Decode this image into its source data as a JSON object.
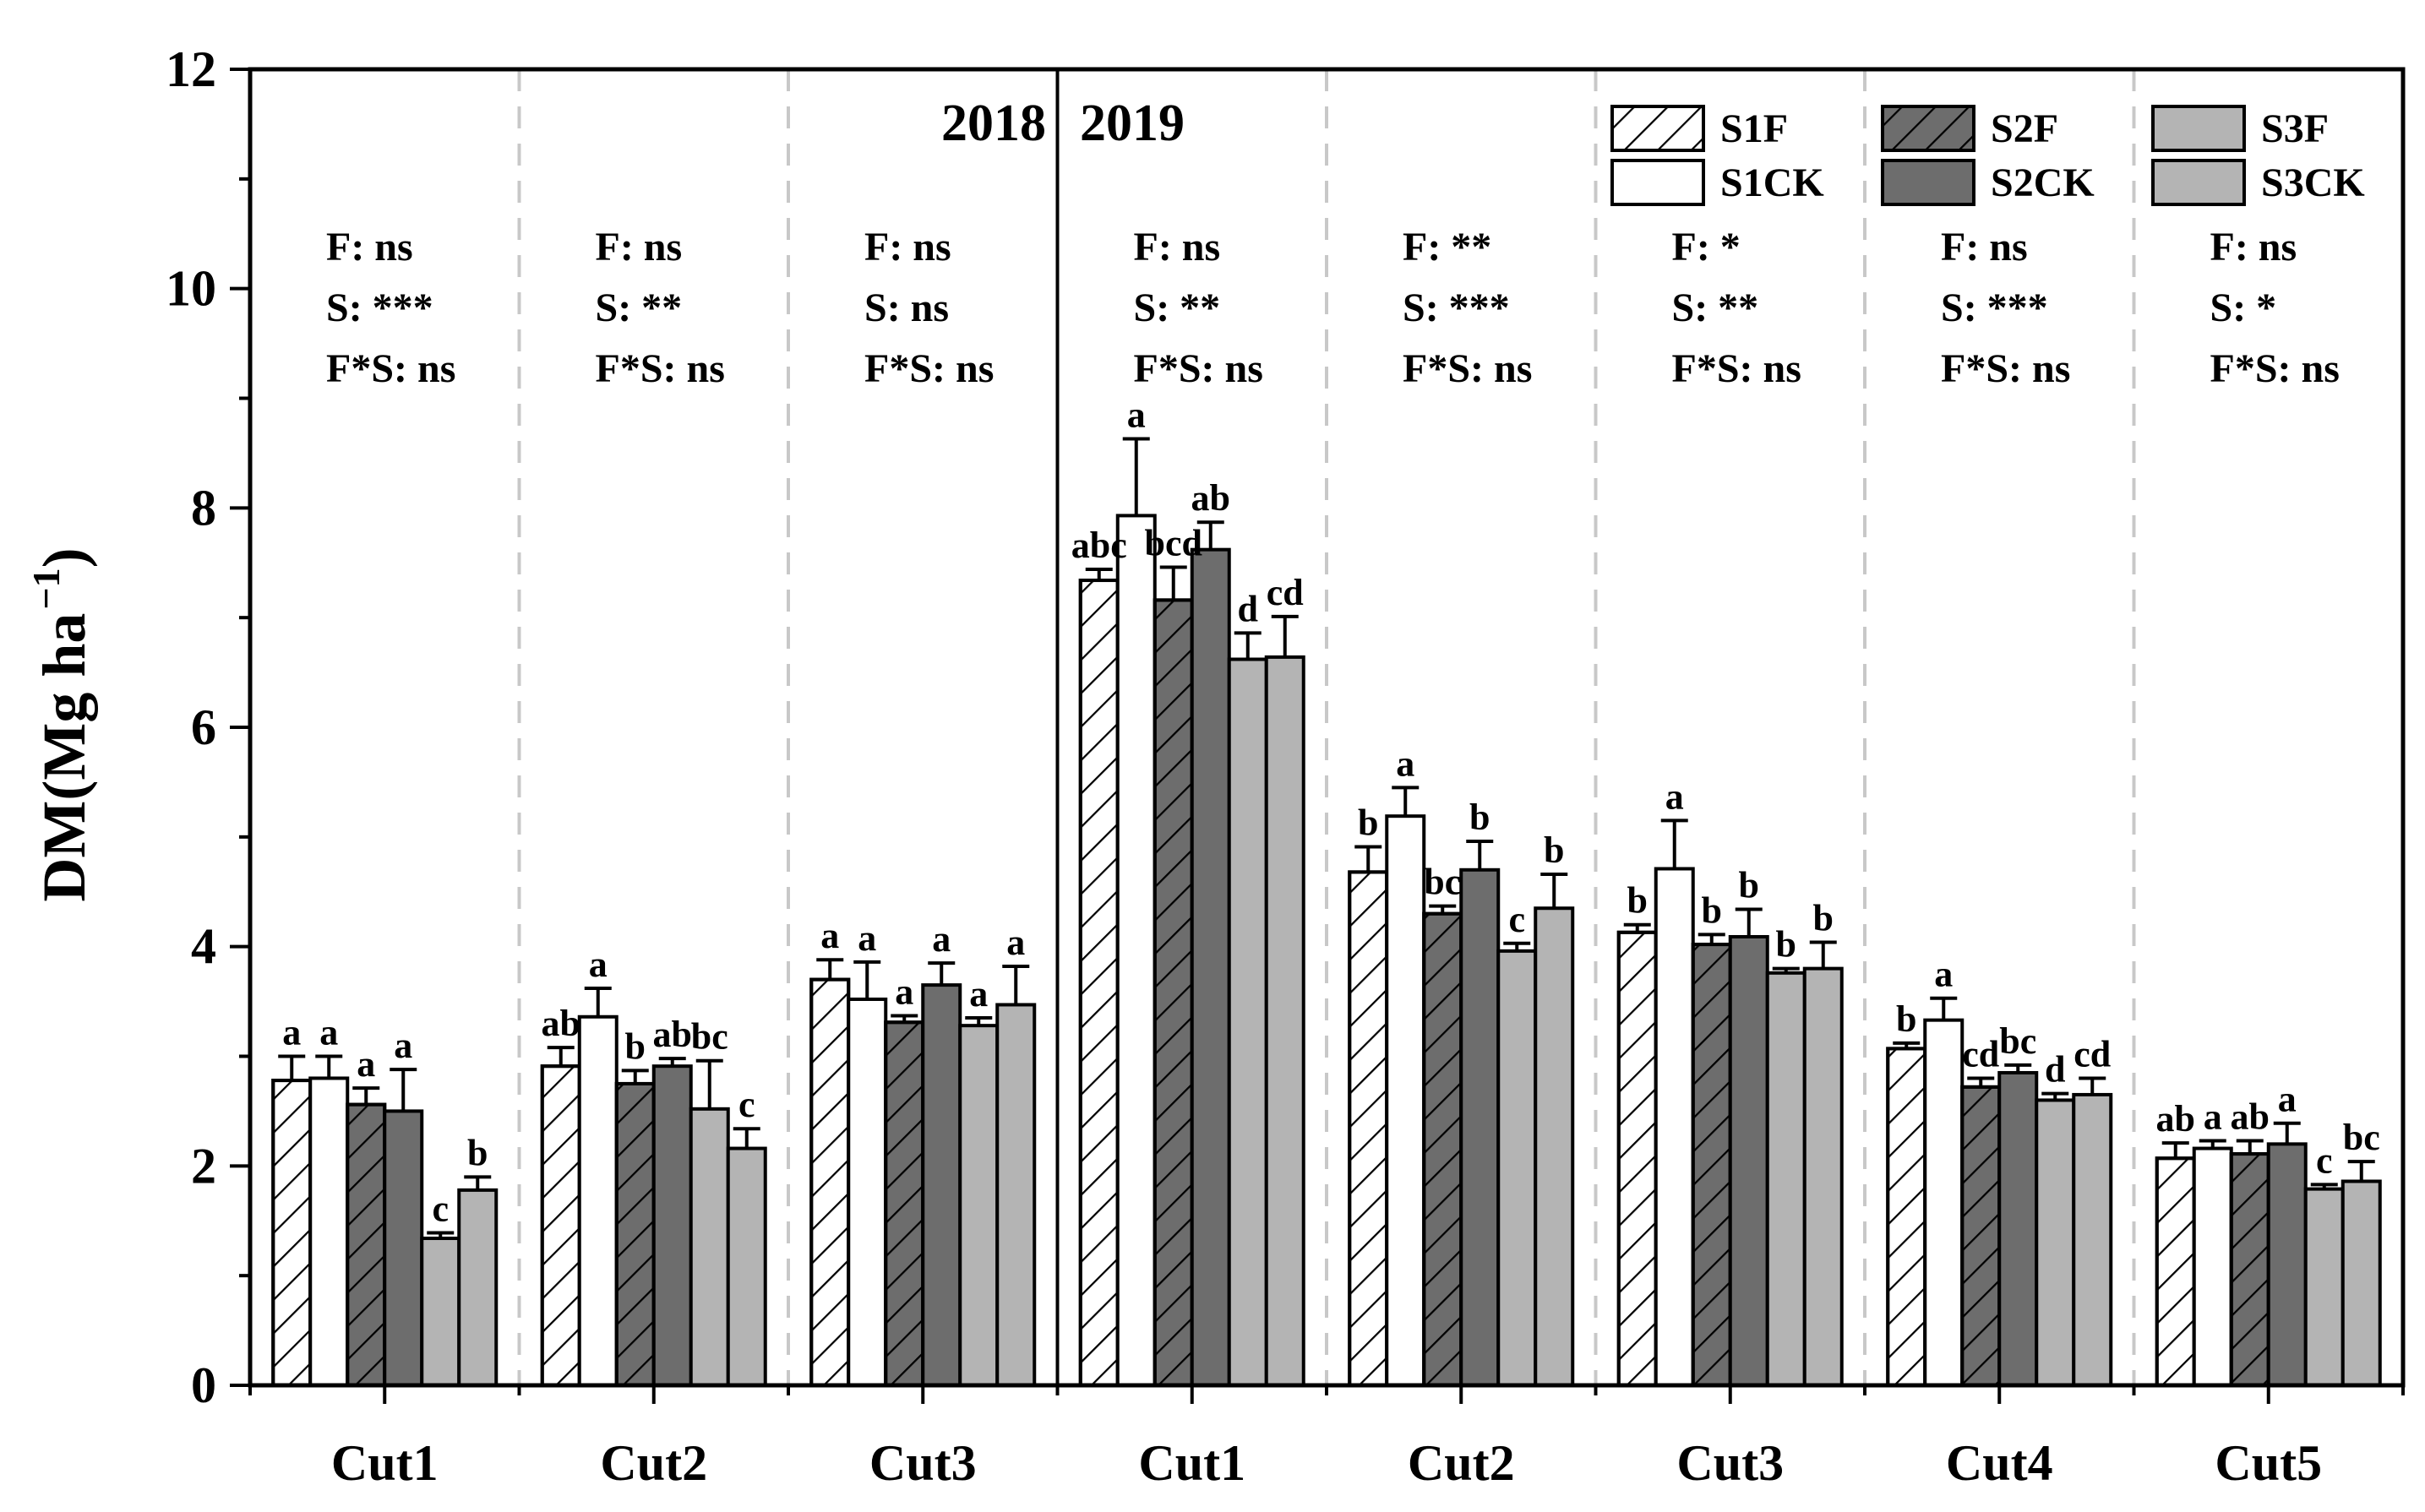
{
  "chart_data": {
    "type": "bar",
    "ylabel": "DM(Mg ha",
    "ylabel_superscript": "−1",
    "ylabel_close": ")",
    "ylim": [
      0,
      12
    ],
    "yticks": [
      "0",
      "2",
      "4",
      "6",
      "8",
      "10",
      "12"
    ],
    "years": [
      "2018",
      "2019"
    ],
    "legend": [
      {
        "name": "S1F",
        "fill": "#ffffff",
        "hatch": true
      },
      {
        "name": "S2F",
        "fill": "#6d6d6d",
        "hatch": true
      },
      {
        "name": "S3F",
        "fill": "#b4b4b4",
        "hatch": false
      },
      {
        "name": "S1CK",
        "fill": "#ffffff",
        "hatch": false
      },
      {
        "name": "S2CK",
        "fill": "#6d6d6d",
        "hatch": false
      },
      {
        "name": "S3CK",
        "fill": "#b4b4b4",
        "hatch": false
      }
    ],
    "series_order": [
      "S1F",
      "S1CK",
      "S2F",
      "S2CK",
      "S3F",
      "S3CK"
    ],
    "groups": [
      {
        "year": "2018",
        "label": "Cut1",
        "values": [
          2.78,
          2.8,
          2.56,
          2.5,
          1.34,
          1.78
        ],
        "errors": [
          0.22,
          0.2,
          0.15,
          0.38,
          0.05,
          0.12
        ],
        "letters": [
          "a",
          "a",
          "a",
          "a",
          "c",
          "b"
        ],
        "stats": [
          "F: ns",
          "S: ***",
          "F*S: ns"
        ]
      },
      {
        "year": "2018",
        "label": "Cut2",
        "values": [
          2.91,
          3.36,
          2.75,
          2.91,
          2.52,
          2.16
        ],
        "errors": [
          0.17,
          0.26,
          0.12,
          0.07,
          0.44,
          0.18
        ],
        "letters": [
          "ab",
          "a",
          "b",
          "ab",
          "bc",
          "c"
        ],
        "stats": [
          "F: ns",
          "S: **",
          "F*S: ns"
        ]
      },
      {
        "year": "2018",
        "label": "Cut3",
        "values": [
          3.7,
          3.52,
          3.31,
          3.65,
          3.28,
          3.47
        ],
        "errors": [
          0.18,
          0.34,
          0.06,
          0.2,
          0.07,
          0.35
        ],
        "letters": [
          "a",
          "a",
          "a",
          "a",
          "a",
          "a"
        ],
        "stats": [
          "F: ns",
          "S: ns",
          "F*S: ns"
        ]
      },
      {
        "year": "2019",
        "label": "Cut1",
        "values": [
          7.34,
          7.93,
          7.16,
          7.62,
          6.62,
          6.64
        ],
        "errors": [
          0.1,
          0.7,
          0.3,
          0.25,
          0.24,
          0.37
        ],
        "letters": [
          "abc",
          "a",
          "bcd",
          "ab",
          "d",
          "cd"
        ],
        "stats": [
          "F: ns",
          "S: **",
          "F*S: ns"
        ]
      },
      {
        "year": "2019",
        "label": "Cut2",
        "values": [
          4.68,
          5.19,
          4.3,
          4.7,
          3.96,
          4.35
        ],
        "errors": [
          0.23,
          0.26,
          0.07,
          0.26,
          0.07,
          0.31
        ],
        "letters": [
          "b",
          "a",
          "bc",
          "b",
          "c",
          "b"
        ],
        "stats": [
          "F: **",
          "S: ***",
          "F*S: ns"
        ]
      },
      {
        "year": "2019",
        "label": "Cut3",
        "values": [
          4.13,
          4.71,
          4.02,
          4.09,
          3.76,
          3.8
        ],
        "errors": [
          0.07,
          0.44,
          0.09,
          0.25,
          0.04,
          0.24
        ],
        "letters": [
          "b",
          "a",
          "b",
          "b",
          "b",
          "b"
        ],
        "stats": [
          "F: *",
          "S: **",
          "F*S: ns"
        ]
      },
      {
        "year": "2019",
        "label": "Cut4",
        "values": [
          3.07,
          3.33,
          2.72,
          2.85,
          2.6,
          2.65
        ],
        "errors": [
          0.05,
          0.2,
          0.08,
          0.07,
          0.06,
          0.15
        ],
        "letters": [
          "b",
          "a",
          "cd",
          "bc",
          "d",
          "cd"
        ],
        "stats": [
          "F: ns",
          "S: ***",
          "F*S: ns"
        ]
      },
      {
        "year": "2019",
        "label": "Cut5",
        "values": [
          2.07,
          2.16,
          2.11,
          2.2,
          1.79,
          1.86
        ],
        "errors": [
          0.14,
          0.07,
          0.12,
          0.19,
          0.04,
          0.18
        ],
        "letters": [
          "ab",
          "a",
          "ab",
          "a",
          "c",
          "bc"
        ],
        "stats": [
          "F: ns",
          "S: *",
          "F*S: ns"
        ]
      }
    ]
  }
}
